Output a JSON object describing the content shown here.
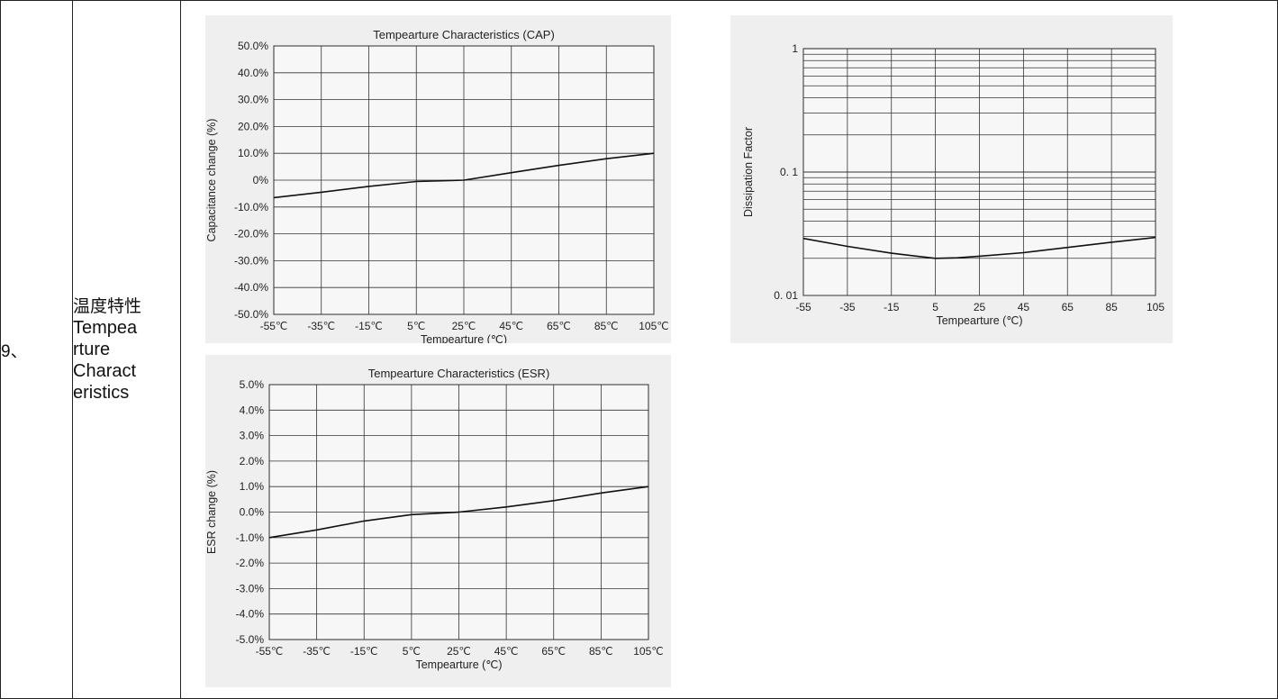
{
  "row": {
    "number": "9、",
    "label_zh": "温度特性",
    "label_en_lines": [
      "Tempea",
      "rture",
      "Charact",
      "eristics"
    ]
  },
  "chart_data": [
    {
      "id": "cap",
      "type": "line",
      "title": "Tempearture Characteristics (CAP)",
      "xlabel": "Tempearture (℃)",
      "ylabel": "Capacitance change (%)",
      "x": [
        -55,
        -35,
        -15,
        5,
        25,
        45,
        65,
        85,
        105
      ],
      "xtick_labels": [
        "-55℃",
        "-35℃",
        "-15℃",
        "5℃",
        "25℃",
        "45℃",
        "65℃",
        "85℃",
        "105℃"
      ],
      "yticks": [
        -50,
        -40,
        -30,
        -20,
        -10,
        0,
        10,
        20,
        30,
        40,
        50
      ],
      "ytick_labels": [
        "-50.0%",
        "-40.0%",
        "-30.0%",
        "-20.0%",
        "-10.0%",
        "0%",
        "10.0%",
        "20.0%",
        "30.0%",
        "40.0%",
        "50.0%"
      ],
      "ylim": [
        -50,
        50
      ],
      "xlim": [
        -55,
        105
      ],
      "grid": true,
      "series": [
        {
          "x": [
            -55,
            -35,
            -15,
            5,
            25,
            45,
            65,
            85,
            105
          ],
          "values": [
            -6.5,
            -4.5,
            -2.3,
            -0.5,
            0,
            2.8,
            5.5,
            8,
            10
          ]
        }
      ]
    },
    {
      "id": "df",
      "type": "line",
      "title": "",
      "xlabel": "Tempearture (℃)",
      "ylabel": "Dissipation Factor",
      "y_scale": "log",
      "x": [
        -55,
        -35,
        -15,
        5,
        25,
        45,
        65,
        85,
        105
      ],
      "xtick_labels": [
        "-55",
        "-35",
        "-15",
        "5",
        "25",
        "45",
        "65",
        "85",
        "105"
      ],
      "yticks": [
        0.01,
        0.1,
        1
      ],
      "ytick_labels": [
        "0. 01",
        "0. 1",
        "1"
      ],
      "ylim": [
        0.01,
        1
      ],
      "xlim": [
        -55,
        105
      ],
      "grid": true,
      "series": [
        {
          "x": [
            -55,
            -35,
            -15,
            5,
            15,
            25,
            45,
            65,
            85,
            105
          ],
          "values": [
            0.029,
            0.025,
            0.022,
            0.02,
            0.0202,
            0.0208,
            0.0222,
            0.0245,
            0.027,
            0.0295
          ]
        }
      ]
    },
    {
      "id": "esr",
      "type": "line",
      "title": "Tempearture Characteristics (ESR)",
      "xlabel": "Tempearture (℃)",
      "ylabel": "ESR change (%)",
      "x": [
        -55,
        -35,
        -15,
        5,
        25,
        45,
        65,
        85,
        105
      ],
      "xtick_labels": [
        "-55℃",
        "-35℃",
        "-15℃",
        "5℃",
        "25℃",
        "45℃",
        "65℃",
        "85℃",
        "105℃"
      ],
      "yticks": [
        -5,
        -4,
        -3,
        -2,
        -1,
        0,
        1,
        2,
        3,
        4,
        5
      ],
      "ytick_labels": [
        "-5.0%",
        "-4.0%",
        "-3.0%",
        "-2.0%",
        "-1.0%",
        "0.0%",
        "1.0%",
        "2.0%",
        "3.0%",
        "4.0%",
        "5.0%"
      ],
      "ylim": [
        -5,
        5
      ],
      "xlim": [
        -55,
        105
      ],
      "grid": true,
      "series": [
        {
          "x": [
            -55,
            -35,
            -15,
            5,
            25,
            45,
            65,
            85,
            105
          ],
          "values": [
            -1,
            -0.7,
            -0.35,
            -0.1,
            0,
            0.2,
            0.45,
            0.75,
            1
          ]
        }
      ]
    }
  ]
}
